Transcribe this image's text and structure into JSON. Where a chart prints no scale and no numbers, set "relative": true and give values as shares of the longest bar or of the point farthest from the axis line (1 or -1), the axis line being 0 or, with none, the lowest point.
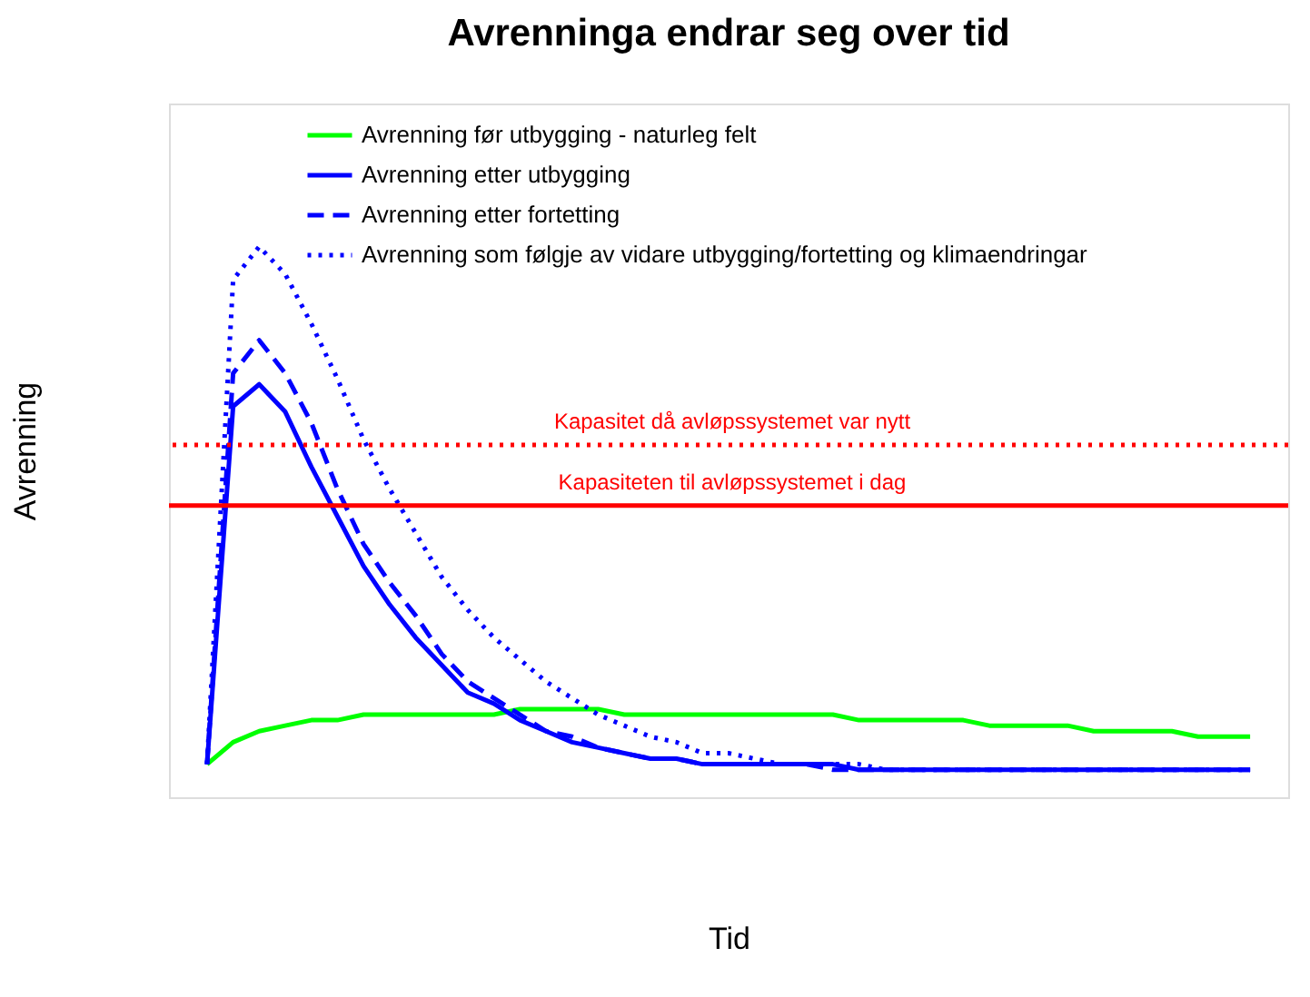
{
  "chart_data": {
    "type": "line",
    "title": "Avrenninga endrar seg over tid",
    "xlabel": "Tid",
    "ylabel": "Avrenning",
    "relative": true,
    "categories": [
      null,
      null,
      null,
      null,
      null,
      null,
      null,
      null,
      null,
      null,
      null,
      null,
      null,
      null,
      null,
      null,
      null,
      null,
      null,
      null,
      null,
      null,
      null,
      null,
      null,
      null,
      null,
      null,
      null,
      null,
      null,
      null,
      null,
      null,
      null,
      null,
      null,
      null,
      null,
      null,
      null
    ],
    "series": [
      {
        "name": "Avrenning før utbygging - naturleg felt",
        "color": "#00ff00",
        "line_style": "solid",
        "values": [
          0.06,
          0.1,
          0.12,
          0.13,
          0.14,
          0.14,
          0.15,
          0.15,
          0.15,
          0.15,
          0.15,
          0.15,
          0.16,
          0.16,
          0.16,
          0.16,
          0.15,
          0.15,
          0.15,
          0.15,
          0.15,
          0.15,
          0.15,
          0.15,
          0.15,
          0.14,
          0.14,
          0.14,
          0.14,
          0.14,
          0.13,
          0.13,
          0.13,
          0.13,
          0.12,
          0.12,
          0.12,
          0.12,
          0.11,
          0.11,
          0.11
        ]
      },
      {
        "name": "Avrenning etter utbygging",
        "color": "#0000ff",
        "line_style": "solid",
        "values": [
          0.06,
          0.71,
          0.75,
          0.7,
          0.6,
          0.51,
          0.42,
          0.35,
          0.29,
          0.24,
          0.19,
          0.17,
          0.14,
          0.12,
          0.1,
          0.09,
          0.08,
          0.07,
          0.07,
          0.06,
          0.06,
          0.06,
          0.06,
          0.06,
          0.06,
          0.05,
          0.05,
          0.05,
          0.05,
          0.05,
          0.05,
          0.05,
          0.05,
          0.05,
          0.05,
          0.05,
          0.05,
          0.05,
          0.05,
          0.05,
          0.05
        ]
      },
      {
        "name": "Avrenning etter fortetting",
        "color": "#0000ff",
        "line_style": "dashed",
        "values": [
          0.06,
          0.77,
          0.83,
          0.77,
          0.68,
          0.56,
          0.46,
          0.39,
          0.33,
          0.26,
          0.21,
          0.18,
          0.15,
          0.12,
          0.11,
          0.09,
          0.08,
          0.07,
          0.07,
          0.06,
          0.06,
          0.06,
          0.06,
          0.06,
          0.05,
          0.05,
          0.05,
          0.05,
          0.05,
          0.05,
          0.05,
          0.05,
          0.05,
          0.05,
          0.05,
          0.05,
          0.05,
          0.05,
          0.05,
          0.05,
          0.05
        ]
      },
      {
        "name": "Avrenning som følgje av vidare utbygging/fortetting og klimaendringar",
        "color": "#0000ff",
        "line_style": "dotted",
        "values": [
          0.06,
          0.94,
          1.0,
          0.95,
          0.86,
          0.76,
          0.65,
          0.56,
          0.48,
          0.4,
          0.34,
          0.29,
          0.25,
          0.21,
          0.18,
          0.15,
          0.13,
          0.11,
          0.1,
          0.08,
          0.08,
          0.07,
          0.06,
          0.06,
          0.06,
          0.06,
          0.05,
          0.05,
          0.05,
          0.05,
          0.05,
          0.05,
          0.05,
          0.05,
          0.05,
          0.05,
          0.05,
          0.05,
          0.05,
          0.05,
          0.05
        ]
      }
    ],
    "ref_lines": [
      {
        "axis": "y",
        "value": 0.64,
        "label": "Kapasitet då avløpssystemet var nytt",
        "color": "#ff0000",
        "line_style": "dotted"
      },
      {
        "axis": "y",
        "value": 0.53,
        "label": "Kapasiteten til avløpssystemet i dag",
        "color": "#ff0000",
        "line_style": "solid"
      }
    ],
    "legend": "top",
    "grid": false,
    "tick_labels": false
  }
}
